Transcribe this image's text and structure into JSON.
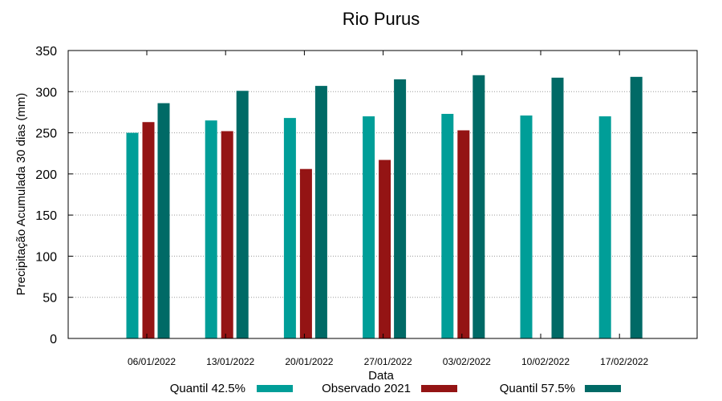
{
  "chart_data": {
    "type": "bar",
    "title": "Rio Purus",
    "xlabel": "Data",
    "ylabel": "Precipitação Acumulada 30 dias (mm)",
    "ylim": [
      0,
      350
    ],
    "yticks": [
      0,
      50,
      100,
      150,
      200,
      250,
      300,
      350
    ],
    "grid": true,
    "legend_position": "bottom",
    "categories": [
      "06/01/2022",
      "13/01/2022",
      "20/01/2022",
      "27/01/2022",
      "03/02/2022",
      "10/02/2022",
      "17/02/2022"
    ],
    "series": [
      {
        "name": "Quantil 42.5%",
        "color": "#009e98",
        "values": [
          250,
          265,
          268,
          270,
          273,
          271,
          270
        ]
      },
      {
        "name": "Observado 2021",
        "color": "#941414",
        "values": [
          263,
          252,
          206,
          217,
          253,
          null,
          null
        ]
      },
      {
        "name": "Quantil 57.5%",
        "color": "#006a66",
        "values": [
          286,
          301,
          307,
          315,
          320,
          317,
          318
        ]
      }
    ]
  }
}
